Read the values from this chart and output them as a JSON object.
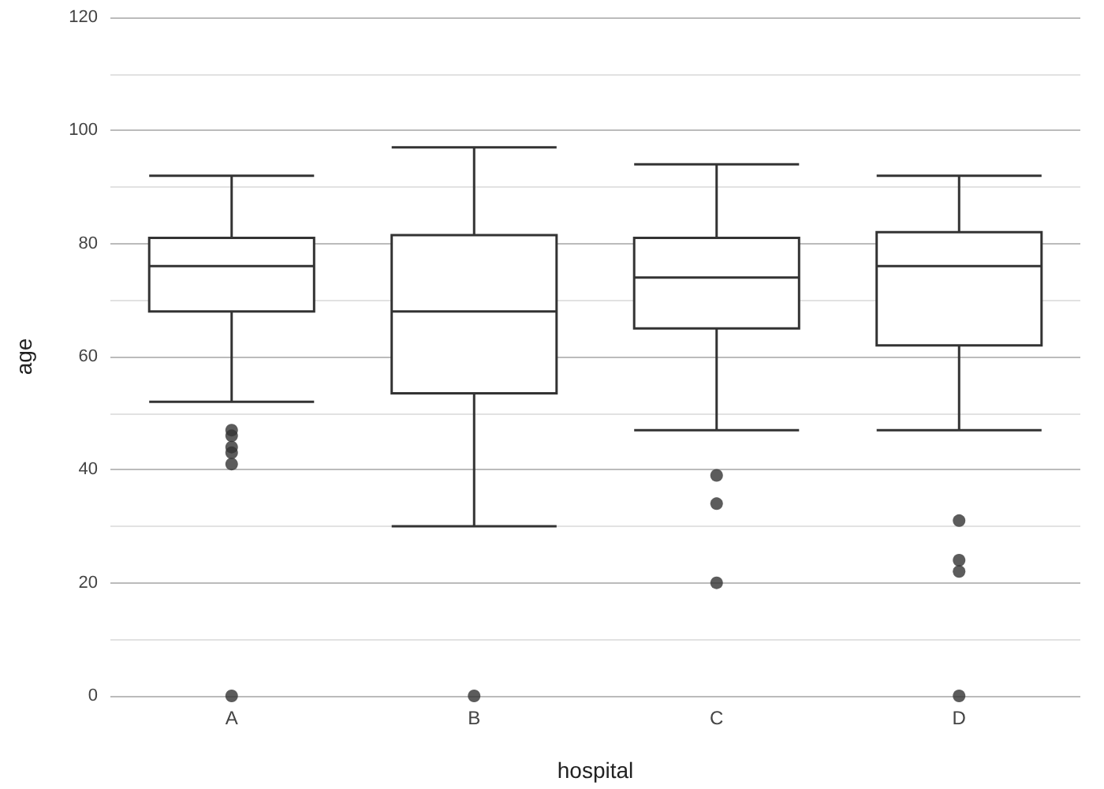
{
  "chart_data": {
    "type": "box",
    "xlabel": "hospital",
    "ylabel": "age",
    "categories": [
      "A",
      "B",
      "C",
      "D"
    ],
    "boxes": [
      {
        "low": 52,
        "q1": 68,
        "median": 76,
        "q3": 81,
        "high": 92,
        "outliers": [
          47,
          46,
          44,
          43,
          41,
          0
        ]
      },
      {
        "low": 30,
        "q1": 53.5,
        "median": 68,
        "q3": 81.5,
        "high": 97,
        "outliers": [
          0
        ]
      },
      {
        "low": 47,
        "q1": 65,
        "median": 74,
        "q3": 81,
        "high": 94,
        "outliers": [
          39,
          34,
          20
        ]
      },
      {
        "low": 47,
        "q1": 62,
        "median": 76,
        "q3": 82,
        "high": 92,
        "outliers": [
          31,
          24,
          22,
          0
        ]
      }
    ],
    "color": "#333333",
    "ylim": [
      0,
      120
    ],
    "yticks": [
      0,
      20,
      40,
      60,
      80,
      100,
      120
    ],
    "grid": "y"
  }
}
